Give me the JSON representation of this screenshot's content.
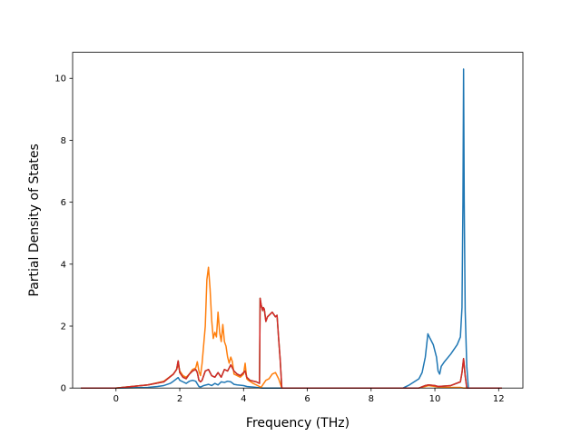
{
  "chart_data": {
    "type": "line",
    "title": "",
    "xlabel": "Frequency (THz)",
    "ylabel": "Partial Density of States",
    "xlim": [
      -1.36,
      12.76
    ],
    "ylim": [
      0,
      10.84
    ],
    "xticks": [
      0,
      2,
      4,
      6,
      8,
      10,
      12
    ],
    "yticks": [
      0,
      2,
      4,
      6,
      8,
      10
    ],
    "grid": false,
    "series": [
      {
        "color": "#1f77b4",
        "x": [
          -1.1,
          0.0,
          1.0,
          1.3,
          1.5,
          1.7,
          1.8,
          1.9,
          1.95,
          2.0,
          2.1,
          2.2,
          2.3,
          2.4,
          2.5,
          2.6,
          2.65,
          2.75,
          2.9,
          3.0,
          3.1,
          3.2,
          3.3,
          3.4,
          3.5,
          3.6,
          3.7,
          3.8,
          4.0,
          4.1,
          4.2,
          4.3,
          4.4,
          4.5,
          4.6,
          4.8,
          5.0,
          5.1,
          5.2,
          9.0,
          9.2,
          9.5,
          9.6,
          9.7,
          9.78,
          9.85,
          9.95,
          10.05,
          10.1,
          10.15,
          10.2,
          10.3,
          10.5,
          10.7,
          10.8,
          10.85,
          10.88,
          10.9,
          10.92,
          10.95,
          11.0,
          11.05,
          12.1
        ],
        "y": [
          0.0,
          0.0,
          0.02,
          0.05,
          0.08,
          0.15,
          0.22,
          0.3,
          0.34,
          0.25,
          0.2,
          0.15,
          0.22,
          0.25,
          0.22,
          0.05,
          0.03,
          0.08,
          0.12,
          0.08,
          0.15,
          0.1,
          0.2,
          0.18,
          0.22,
          0.2,
          0.12,
          0.1,
          0.08,
          0.05,
          0.04,
          0.03,
          0.02,
          0.01,
          0.0,
          0.0,
          0.0,
          0.0,
          0.0,
          0.0,
          0.1,
          0.3,
          0.5,
          1.0,
          1.75,
          1.6,
          1.4,
          1.0,
          0.55,
          0.45,
          0.7,
          0.85,
          1.1,
          1.4,
          1.65,
          2.6,
          6.0,
          10.3,
          6.0,
          2.5,
          0.7,
          0.0,
          0.0
        ]
      },
      {
        "color": "#ff7f0e",
        "x": [
          -1.1,
          0.0,
          1.0,
          1.5,
          1.8,
          1.9,
          1.95,
          2.0,
          2.1,
          2.2,
          2.3,
          2.4,
          2.5,
          2.55,
          2.6,
          2.65,
          2.7,
          2.8,
          2.85,
          2.9,
          2.95,
          3.0,
          3.05,
          3.1,
          3.15,
          3.2,
          3.25,
          3.3,
          3.35,
          3.4,
          3.45,
          3.5,
          3.55,
          3.6,
          3.65,
          3.7,
          3.8,
          3.9,
          4.0,
          4.05,
          4.1,
          4.15,
          4.3,
          4.5,
          4.55,
          4.6,
          4.7,
          4.8,
          4.9,
          5.0,
          5.1,
          5.2,
          9.0,
          9.5,
          9.7,
          9.8,
          10.0,
          10.1,
          10.5,
          10.8,
          10.9,
          11.0,
          12.1
        ],
        "y": [
          0.0,
          0.0,
          0.1,
          0.22,
          0.45,
          0.6,
          0.75,
          0.55,
          0.4,
          0.35,
          0.45,
          0.6,
          0.65,
          0.85,
          0.55,
          0.4,
          0.8,
          2.0,
          3.5,
          3.9,
          3.2,
          2.2,
          1.6,
          1.8,
          1.65,
          2.45,
          1.8,
          1.5,
          2.05,
          1.5,
          1.35,
          1.0,
          0.8,
          1.0,
          0.85,
          0.45,
          0.4,
          0.35,
          0.45,
          0.8,
          0.3,
          0.25,
          0.15,
          0.05,
          0.02,
          0.1,
          0.25,
          0.3,
          0.45,
          0.5,
          0.3,
          0.0,
          0.0,
          0.0,
          0.05,
          0.08,
          0.05,
          0.03,
          0.02,
          0.02,
          0.0,
          0.0,
          0.0
        ]
      },
      {
        "color": "#2ca02c",
        "x": [
          -1.1,
          0.0,
          1.0,
          1.5,
          1.8,
          1.9,
          1.95,
          2.0,
          2.1,
          2.2,
          2.3,
          2.4,
          2.5,
          2.55,
          2.6,
          2.65,
          2.7,
          2.8,
          2.9,
          2.95,
          3.0,
          3.1,
          3.2,
          3.3,
          3.4,
          3.5,
          3.55,
          3.6,
          3.7,
          3.8,
          3.9,
          4.0,
          4.05,
          4.1,
          4.2,
          4.4,
          4.5,
          4.52,
          4.55,
          4.6,
          4.62,
          4.65,
          4.7,
          4.75,
          4.8,
          4.9,
          5.0,
          5.05,
          5.1,
          5.15,
          5.2,
          9.0,
          9.5,
          9.7,
          9.8,
          10.0,
          10.1,
          10.5,
          10.8,
          10.85,
          10.9,
          10.95,
          11.0,
          12.1
        ],
        "y": [
          0.0,
          0.0,
          0.1,
          0.2,
          0.45,
          0.6,
          0.88,
          0.5,
          0.35,
          0.3,
          0.45,
          0.55,
          0.6,
          0.5,
          0.25,
          0.2,
          0.25,
          0.55,
          0.6,
          0.5,
          0.4,
          0.35,
          0.5,
          0.35,
          0.6,
          0.55,
          0.65,
          0.75,
          0.55,
          0.45,
          0.4,
          0.5,
          0.55,
          0.35,
          0.25,
          0.2,
          0.15,
          2.9,
          2.7,
          2.5,
          2.6,
          2.55,
          2.15,
          2.3,
          2.35,
          2.45,
          2.3,
          2.35,
          1.6,
          0.9,
          0.0,
          0.0,
          0.0,
          0.08,
          0.1,
          0.08,
          0.05,
          0.08,
          0.2,
          0.5,
          0.95,
          0.4,
          0.0,
          0.0
        ]
      },
      {
        "color": "#d62728",
        "x": [
          -1.1,
          0.0,
          1.0,
          1.5,
          1.8,
          1.9,
          1.95,
          2.0,
          2.1,
          2.2,
          2.3,
          2.4,
          2.5,
          2.55,
          2.6,
          2.65,
          2.7,
          2.8,
          2.9,
          2.95,
          3.0,
          3.1,
          3.2,
          3.3,
          3.4,
          3.5,
          3.55,
          3.6,
          3.7,
          3.8,
          3.9,
          4.0,
          4.05,
          4.1,
          4.2,
          4.4,
          4.5,
          4.52,
          4.55,
          4.6,
          4.62,
          4.65,
          4.7,
          4.75,
          4.8,
          4.9,
          5.0,
          5.05,
          5.1,
          5.15,
          5.2,
          9.0,
          9.5,
          9.7,
          9.8,
          10.0,
          10.1,
          10.5,
          10.8,
          10.85,
          10.9,
          10.95,
          11.0,
          12.1
        ],
        "y": [
          0.0,
          0.0,
          0.1,
          0.2,
          0.45,
          0.6,
          0.88,
          0.5,
          0.35,
          0.3,
          0.45,
          0.55,
          0.6,
          0.5,
          0.25,
          0.2,
          0.25,
          0.55,
          0.6,
          0.5,
          0.4,
          0.35,
          0.5,
          0.35,
          0.6,
          0.55,
          0.65,
          0.75,
          0.55,
          0.45,
          0.4,
          0.5,
          0.55,
          0.35,
          0.25,
          0.2,
          0.15,
          2.9,
          2.7,
          2.5,
          2.6,
          2.55,
          2.15,
          2.3,
          2.35,
          2.45,
          2.3,
          2.35,
          1.6,
          0.9,
          0.0,
          0.0,
          0.0,
          0.08,
          0.1,
          0.08,
          0.05,
          0.08,
          0.2,
          0.5,
          0.95,
          0.4,
          0.0,
          0.0
        ]
      }
    ]
  }
}
